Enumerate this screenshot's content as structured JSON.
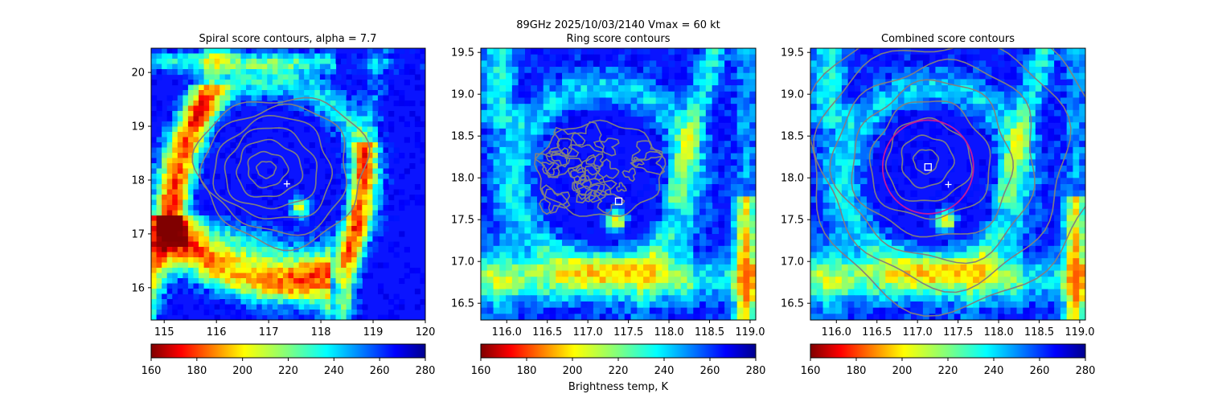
{
  "figure": {
    "suptitle_line1": "89GHz  2025/10/03/2140    Vmax = 60 kt",
    "colorbar_label": "Brightness temp, K"
  },
  "colors": {
    "contour": "#808080",
    "ring_circle": "#c41a9b",
    "marker": "#ffffff"
  },
  "chart_data": [
    {
      "type": "heatmap",
      "title": "Spiral score contours, alpha =  7.7",
      "xlabel": "",
      "ylabel": "",
      "xlim": [
        114.75,
        120.0
      ],
      "ylim": [
        15.4,
        20.45
      ],
      "xticks": [
        115,
        116,
        117,
        118,
        119,
        120
      ],
      "yticks": [
        16,
        17,
        18,
        19,
        20
      ],
      "tick_labels_x": [
        "115",
        "116",
        "117",
        "118",
        "119",
        "120"
      ],
      "tick_labels_y": [
        "16",
        "17",
        "18",
        "19",
        "20"
      ],
      "center_marker": {
        "symbol": "plus",
        "x": 117.35,
        "y": 17.93
      },
      "contour_center": {
        "x": 116.95,
        "y": 18.2
      },
      "contours": "spiral score",
      "colorbar": {
        "cmap": "jet_r",
        "range": [
          160,
          280
        ],
        "ticks": [
          "160",
          "180",
          "200",
          "220",
          "240",
          "260",
          "280"
        ]
      }
    },
    {
      "type": "heatmap",
      "title": "Ring score contours",
      "xlabel": "",
      "ylabel": "",
      "xlim": [
        115.68,
        119.07
      ],
      "ylim": [
        16.3,
        19.55
      ],
      "xticks": [
        116.0,
        116.5,
        117.0,
        117.5,
        118.0,
        118.5,
        119.0
      ],
      "yticks": [
        16.5,
        17.0,
        17.5,
        18.0,
        18.5,
        19.0,
        19.5
      ],
      "tick_labels_x": [
        "116.0",
        "116.5",
        "117.0",
        "117.5",
        "118.0",
        "118.5",
        "119.0"
      ],
      "tick_labels_y": [
        "16.5",
        "17.0",
        "17.5",
        "18.0",
        "18.5",
        "19.0",
        "19.5"
      ],
      "center_marker": {
        "symbol": "square",
        "x": 117.38,
        "y": 17.72
      },
      "contour_region": {
        "x": 117.15,
        "y": 18.1,
        "radius_deg": 0.78
      },
      "contours": "ring score",
      "colorbar": {
        "cmap": "jet_r",
        "range": [
          160,
          280
        ],
        "ticks": [
          "160",
          "180",
          "200",
          "220",
          "240",
          "260",
          "280"
        ]
      }
    },
    {
      "type": "heatmap",
      "title": "Combined score contours",
      "xlabel": "",
      "ylabel": "",
      "xlim": [
        115.68,
        119.07
      ],
      "ylim": [
        16.3,
        19.55
      ],
      "xticks": [
        116.0,
        116.5,
        117.0,
        117.5,
        118.0,
        118.5,
        119.0
      ],
      "yticks": [
        16.5,
        17.0,
        17.5,
        18.0,
        18.5,
        19.0,
        19.5
      ],
      "tick_labels_x": [
        "116.0",
        "116.5",
        "117.0",
        "117.5",
        "118.0",
        "118.5",
        "119.0"
      ],
      "tick_labels_y": [
        "16.5",
        "17.0",
        "17.5",
        "18.0",
        "18.5",
        "19.0",
        "19.5"
      ],
      "square_marker": {
        "x": 117.13,
        "y": 18.13
      },
      "plus_marker": {
        "x": 117.38,
        "y": 17.92
      },
      "ring": {
        "x": 117.13,
        "y": 18.13,
        "radius_deg": 0.56
      },
      "contour_center": {
        "x": 117.1,
        "y": 18.2
      },
      "contours": "combined score",
      "colorbar": {
        "cmap": "jet_r",
        "range": [
          160,
          280
        ],
        "ticks": [
          "160",
          "180",
          "200",
          "220",
          "240",
          "260",
          "280"
        ]
      }
    }
  ]
}
